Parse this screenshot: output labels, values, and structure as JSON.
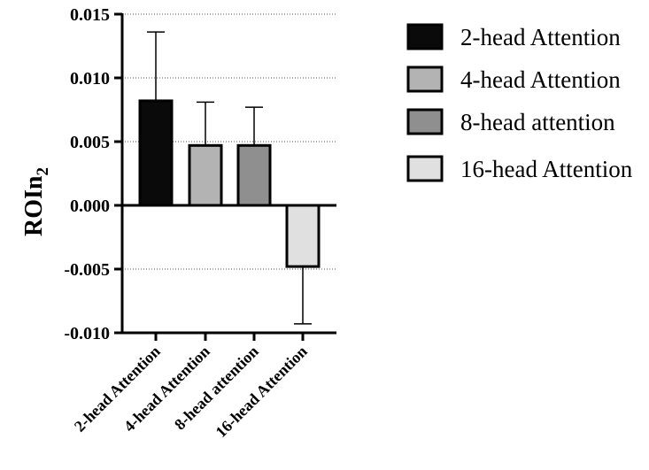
{
  "chart_data": {
    "type": "bar",
    "title": "",
    "xlabel": "",
    "ylabel": "ROIn",
    "ylabel_subscript": "2",
    "ylim": [
      -0.01,
      0.015
    ],
    "yticks": [
      "0.015",
      "0.010",
      "0.005",
      "0.000",
      "-0.005",
      "-0.010"
    ],
    "ytick_values": [
      0.015,
      0.01,
      0.005,
      0.0,
      -0.005,
      -0.01
    ],
    "grid": "horizontal dotted",
    "legend_position": "right",
    "categories": [
      "2-head Attention",
      "4-head Attention",
      "8-head attention",
      "16-head Attention"
    ],
    "values": [
      0.0082,
      0.0047,
      0.0047,
      -0.0048
    ],
    "error_bars": [
      {
        "direction": "up",
        "value": 0.0136
      },
      {
        "direction": "up",
        "value": 0.0081
      },
      {
        "direction": "up",
        "value": 0.0077
      },
      {
        "direction": "down",
        "value": -0.0093
      }
    ],
    "colors": [
      "#0a0a0a",
      "#b3b3b3",
      "#8f8f8f",
      "#e0e0e0"
    ],
    "legend": [
      "2-head Attention",
      "4-head Attention",
      "8-head attention",
      "16-head Attention"
    ]
  }
}
